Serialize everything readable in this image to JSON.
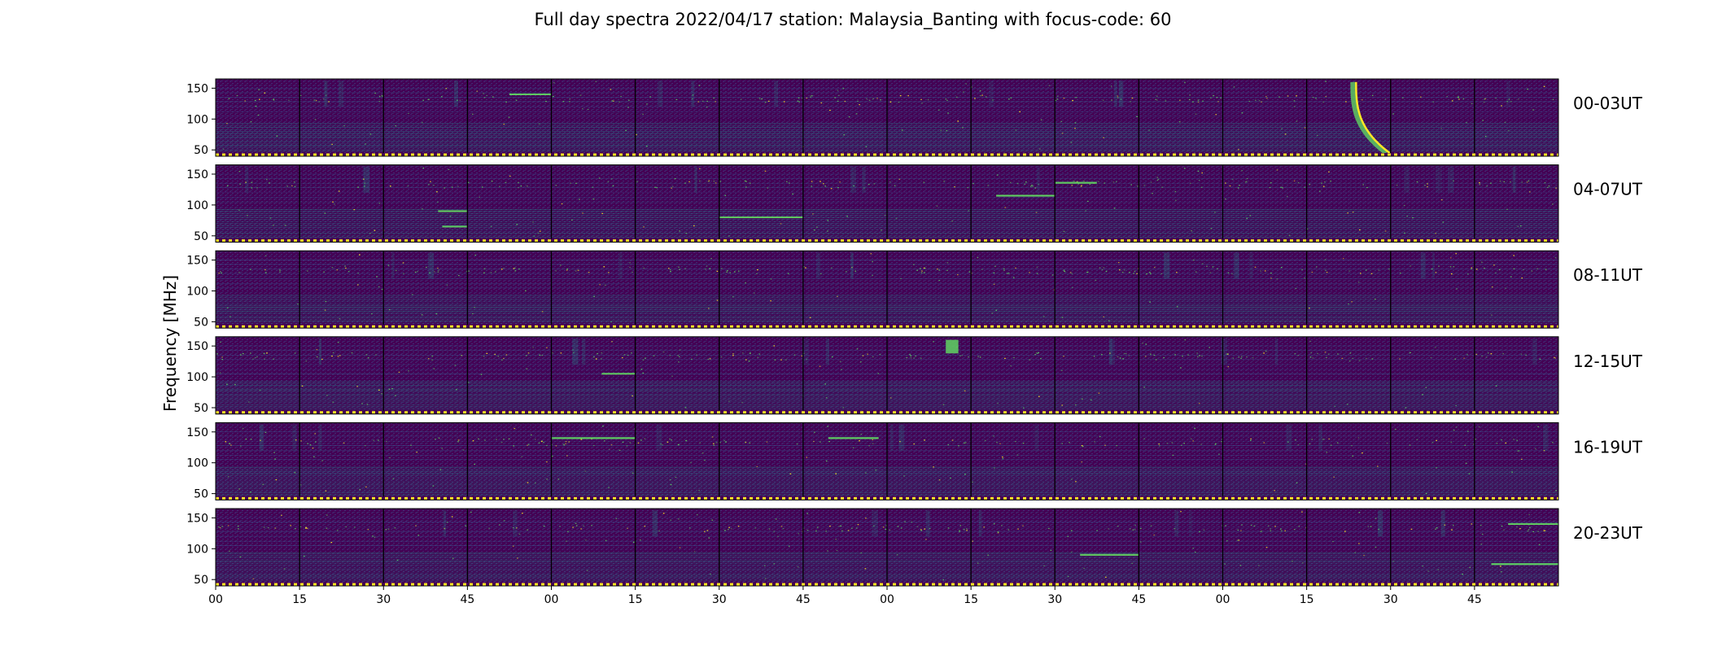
{
  "chart_data": {
    "type": "heatmap",
    "title": "Full day spectra 2022/04/17 station: Malaysia_Banting with focus-code: 60",
    "xlabel": "",
    "ylabel": "Frequency [MHz]",
    "colormap": "viridis",
    "colors": {
      "background": "#440154",
      "mid": "#3b528b",
      "band": "#21918c",
      "bright": "#5ec962",
      "peak": "#fde725",
      "separator": "#000000"
    },
    "ylim": [
      45,
      165
    ],
    "y_ticks": [
      50,
      100,
      150
    ],
    "y_tick_labels": [
      "50",
      "100",
      "150"
    ],
    "x_ticks": [
      0,
      15,
      30,
      45,
      60,
      75,
      90,
      105,
      120,
      135,
      150,
      165,
      180,
      195,
      210,
      225
    ],
    "x_tick_labels": [
      "00",
      "15",
      "30",
      "45",
      "00",
      "15",
      "30",
      "45",
      "00",
      "15",
      "30",
      "45",
      "00",
      "15",
      "30",
      "45"
    ],
    "xlim": [
      0,
      240
    ],
    "segment_minutes": 15,
    "segments_per_row": 16,
    "rows": [
      {
        "label": "00-03UT"
      },
      {
        "label": "04-07UT"
      },
      {
        "label": "08-11UT"
      },
      {
        "label": "12-15UT"
      },
      {
        "label": "16-19UT"
      },
      {
        "label": "20-23UT"
      }
    ],
    "features": [
      {
        "row": 0,
        "kind": "burst",
        "segment": 13,
        "t": [
          0.55,
          0.95
        ],
        "f": [
          45,
          160
        ]
      },
      {
        "row": 0,
        "kind": "line",
        "segment": 3,
        "t": [
          0.5,
          1.0
        ],
        "f": 140
      },
      {
        "row": 1,
        "kind": "line",
        "segment": 2,
        "t": [
          0.65,
          1.0
        ],
        "f": 90
      },
      {
        "row": 1,
        "kind": "line",
        "segment": 2,
        "t": [
          0.7,
          1.0
        ],
        "f": 65
      },
      {
        "row": 1,
        "kind": "line",
        "segment": 9,
        "t": [
          0.3,
          1.0
        ],
        "f": 115
      },
      {
        "row": 1,
        "kind": "line",
        "segment": 10,
        "t": [
          0.0,
          0.5
        ],
        "f": 136
      },
      {
        "row": 1,
        "kind": "line",
        "segment": 6,
        "t": [
          0.0,
          1.0
        ],
        "f": 80
      },
      {
        "row": 3,
        "kind": "patch",
        "segment": 8,
        "t": [
          0.7,
          0.85
        ],
        "f": [
          138,
          160
        ]
      },
      {
        "row": 3,
        "kind": "line",
        "segment": 4,
        "t": [
          0.6,
          1.0
        ],
        "f": 105
      },
      {
        "row": 4,
        "kind": "line",
        "segment": 4,
        "t": [
          0.0,
          1.0
        ],
        "f": 140
      },
      {
        "row": 4,
        "kind": "line",
        "segment": 7,
        "t": [
          0.3,
          0.9
        ],
        "f": 140
      },
      {
        "row": 5,
        "kind": "line",
        "segment": 10,
        "t": [
          0.3,
          1.0
        ],
        "f": 90
      },
      {
        "row": 5,
        "kind": "line",
        "segment": 15,
        "t": [
          0.2,
          1.0
        ],
        "f": 75
      },
      {
        "row": 5,
        "kind": "line",
        "segment": 15,
        "t": [
          0.4,
          1.0
        ],
        "f": 140
      }
    ]
  }
}
